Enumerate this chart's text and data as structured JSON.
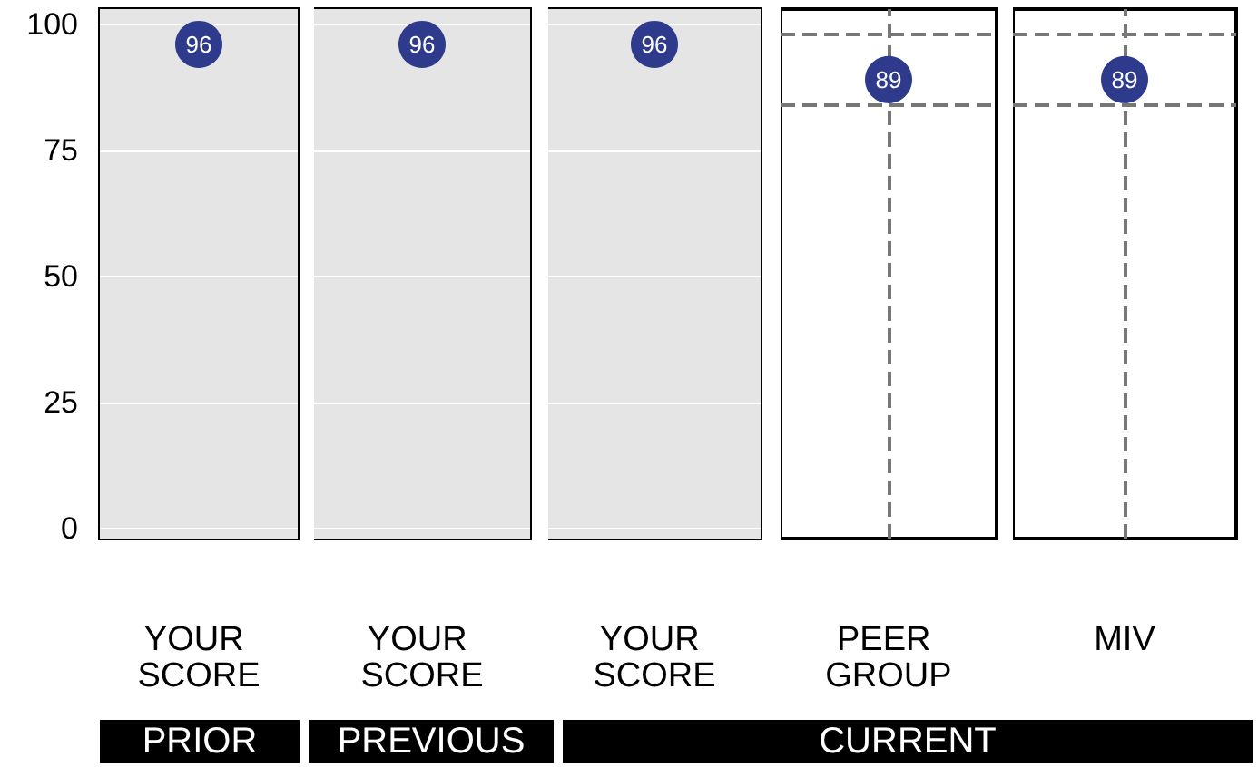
{
  "chart_data": [
    {
      "type": "scatter",
      "categories": [
        "YOUR SCORE"
      ],
      "values": [
        96
      ],
      "color": "#2e3a8c",
      "data_labels": true,
      "ylim": [
        -2,
        103
      ],
      "yticks": [
        0,
        25,
        50,
        75,
        100
      ],
      "grid": "y",
      "bands": [
        {
          "axis": "y",
          "from": -2,
          "to": 103,
          "color": "#e5e5e5"
        }
      ],
      "annotations": [
        "PRIOR"
      ]
    },
    {
      "type": "scatter",
      "categories": [
        "YOUR SCORE"
      ],
      "values": [
        96
      ],
      "color": "#2e3a8c",
      "data_labels": true,
      "ylim": [
        -2,
        103
      ],
      "yticks": [
        0,
        25,
        50,
        75,
        100
      ],
      "grid": "y",
      "tick_labels": "x",
      "bands": [
        {
          "axis": "y",
          "from": -2,
          "to": 103,
          "color": "#e5e5e5"
        }
      ],
      "annotations": [
        "PREVIOUS"
      ]
    },
    {
      "type": "scatter",
      "categories": [
        "YOUR SCORE"
      ],
      "values": [
        96
      ],
      "color": "#2e3a8c",
      "data_labels": true,
      "ylim": [
        -2,
        103
      ],
      "yticks": [
        0,
        25,
        50,
        75,
        100
      ],
      "grid": "y",
      "tick_labels": "x",
      "bands": [
        {
          "axis": "y",
          "from": -2,
          "to": 103,
          "color": "#e5e5e5"
        }
      ],
      "annotations": [
        "CURRENT"
      ]
    },
    {
      "type": "scatter",
      "categories": [
        "PEER GROUP"
      ],
      "values": [
        89
      ],
      "color": "#2e3a8c",
      "data_labels": true,
      "ylim": [
        -2,
        103
      ],
      "yticks": [
        0,
        25,
        50,
        75,
        100
      ],
      "tick_labels": "x",
      "ref_lines": [
        {
          "axis": "y",
          "value": 98,
          "color": "#777777",
          "line_style": "dashed"
        },
        {
          "axis": "y",
          "value": 84,
          "color": "#777777",
          "line_style": "dashed"
        },
        {
          "axis": "x",
          "value": "PEER GROUP",
          "color": "#777777",
          "line_style": "dashed"
        }
      ]
    },
    {
      "type": "scatter",
      "categories": [
        "MIV"
      ],
      "values": [
        89
      ],
      "color": "#2e3a8c",
      "data_labels": true,
      "ylim": [
        -2,
        103
      ],
      "yticks": [
        0,
        25,
        50,
        75,
        100
      ],
      "tick_labels": "x",
      "ref_lines": [
        {
          "axis": "y",
          "value": 98,
          "color": "#777777",
          "line_style": "dashed"
        },
        {
          "axis": "y",
          "value": 84,
          "color": "#777777",
          "line_style": "dashed"
        },
        {
          "axis": "x",
          "value": "MIV",
          "color": "#777777",
          "line_style": "dashed"
        }
      ]
    }
  ]
}
